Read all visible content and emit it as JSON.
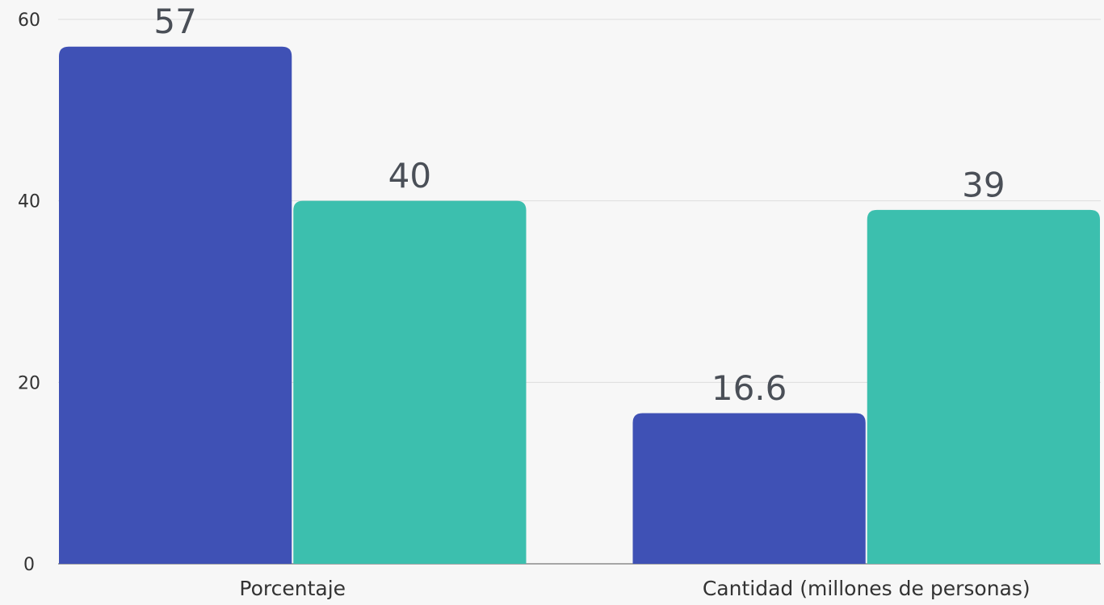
{
  "chart_data": {
    "type": "bar",
    "categories": [
      "Porcentaje",
      "Cantidad (millones de personas)"
    ],
    "series": [
      {
        "color": "#3f51b5",
        "values": [
          57,
          16.6
        ]
      },
      {
        "color": "#3cbfae",
        "values": [
          40,
          39
        ]
      }
    ],
    "ylim": [
      0,
      60
    ],
    "yticks": [
      0,
      20,
      40,
      60
    ],
    "grid": true
  }
}
